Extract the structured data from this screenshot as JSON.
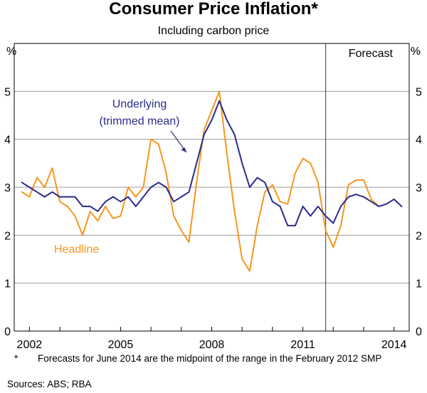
{
  "chart_data": {
    "type": "line",
    "title": "Consumer Price Inflation*",
    "subtitle": "Including carbon price",
    "yunit_left": "%",
    "yunit_right": "%",
    "ylim": [
      0,
      6
    ],
    "yticks": [
      0,
      1,
      2,
      3,
      4,
      5
    ],
    "xlim": [
      2001.5,
      2014.5
    ],
    "xticks": [
      2002,
      2005,
      2008,
      2011,
      2014
    ],
    "xtick_labels": [
      "2002",
      "2005",
      "2008",
      "2011",
      "2014"
    ],
    "forecast_start": 2011.75,
    "forecast_label": "Forecast",
    "series": [
      {
        "name": "Headline",
        "color": "#f5961e",
        "x": [
          2001.75,
          2002.0,
          2002.25,
          2002.5,
          2002.75,
          2003.0,
          2003.25,
          2003.5,
          2003.75,
          2004.0,
          2004.25,
          2004.5,
          2004.75,
          2005.0,
          2005.25,
          2005.5,
          2005.75,
          2006.0,
          2006.25,
          2006.5,
          2006.75,
          2007.0,
          2007.25,
          2007.5,
          2007.75,
          2008.0,
          2008.25,
          2008.5,
          2008.75,
          2009.0,
          2009.25,
          2009.5,
          2009.75,
          2010.0,
          2010.25,
          2010.5,
          2010.75,
          2011.0,
          2011.25,
          2011.5,
          2011.75,
          2012.0,
          2012.25,
          2012.5,
          2012.75,
          2013.0,
          2013.25,
          2013.5
        ],
        "values": [
          2.9,
          2.8,
          3.2,
          3.0,
          3.4,
          2.7,
          2.6,
          2.4,
          2.0,
          2.5,
          2.3,
          2.6,
          2.35,
          2.4,
          3.0,
          2.8,
          3.0,
          4.0,
          3.9,
          3.3,
          2.4,
          2.1,
          1.85,
          3.1,
          4.2,
          4.6,
          5.0,
          3.7,
          2.5,
          1.5,
          1.25,
          2.2,
          2.9,
          3.05,
          2.7,
          2.65,
          3.3,
          3.6,
          3.5,
          3.1,
          2.1,
          1.75,
          2.2,
          3.05,
          3.15,
          3.15,
          2.75,
          2.6
        ]
      },
      {
        "name": "Underlying (trimmed mean)",
        "color": "#2b2b8c",
        "x": [
          2001.75,
          2002.0,
          2002.25,
          2002.5,
          2002.75,
          2003.0,
          2003.25,
          2003.5,
          2003.75,
          2004.0,
          2004.25,
          2004.5,
          2004.75,
          2005.0,
          2005.25,
          2005.5,
          2005.75,
          2006.0,
          2006.25,
          2006.5,
          2006.75,
          2007.0,
          2007.25,
          2007.5,
          2007.75,
          2008.0,
          2008.25,
          2008.5,
          2008.75,
          2009.0,
          2009.25,
          2009.5,
          2009.75,
          2010.0,
          2010.25,
          2010.5,
          2010.75,
          2011.0,
          2011.25,
          2011.5,
          2011.75,
          2012.0,
          2012.25,
          2012.5,
          2012.75,
          2013.0,
          2013.25,
          2013.5,
          2013.75,
          2014.0,
          2014.25
        ],
        "values": [
          3.1,
          3.0,
          2.9,
          2.8,
          2.9,
          2.8,
          2.8,
          2.8,
          2.6,
          2.6,
          2.5,
          2.7,
          2.8,
          2.7,
          2.8,
          2.6,
          2.8,
          3.0,
          3.1,
          3.0,
          2.7,
          2.8,
          2.9,
          3.5,
          4.1,
          4.4,
          4.8,
          4.4,
          4.1,
          3.5,
          3.0,
          3.2,
          3.1,
          2.7,
          2.6,
          2.2,
          2.2,
          2.6,
          2.4,
          2.6,
          2.4,
          2.25,
          2.6,
          2.8,
          2.85,
          2.8,
          2.7,
          2.6,
          2.65,
          2.75,
          2.6
        ]
      }
    ],
    "annotations": {
      "underlying_line1": "Underlying",
      "underlying_line2": "(trimmed mean)",
      "headline": "Headline"
    }
  },
  "footnote": {
    "marker": "*",
    "text": "Forecasts for June 2014 are the midpoint of the range in the February 2012 SMP"
  },
  "sources": "Sources: ABS; RBA"
}
